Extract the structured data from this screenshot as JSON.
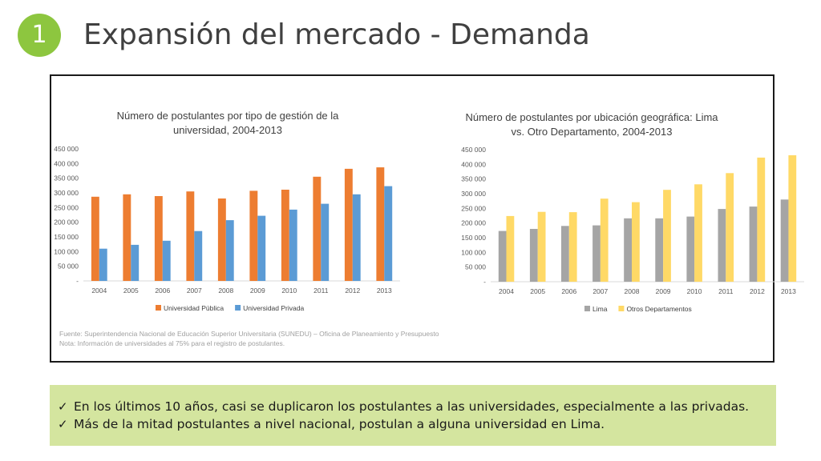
{
  "slide": {
    "number": "1",
    "title": "Expansión del mercado - Demanda"
  },
  "source_note": {
    "line1": "Fuente: Superintendencia Nacional de Educación Superior Universitaria (SUNEDU) – Oficina de Planeamiento y Presupuesto",
    "line2": "Nota: Información de universidades al 75% para el registro de postulantes."
  },
  "summary": {
    "bullets": [
      "En los últimos 10 años, casi se duplicaron los postulantes a las universidades, especialmente a las privadas.",
      "Más de la mitad postulantes a nivel nacional, postulan a alguna universidad en Lima."
    ],
    "check_icon": "checkmark-icon",
    "background": "#d4e59f"
  },
  "chart_data": [
    {
      "type": "bar",
      "title_lines": [
        "Número de postulantes por tipo de gestión de la",
        "universidad, 2004-2013"
      ],
      "categories": [
        "2004",
        "2005",
        "2006",
        "2007",
        "2008",
        "2009",
        "2010",
        "2011",
        "2012",
        "2013"
      ],
      "series": [
        {
          "name": "Universidad Pública",
          "color": "#ed7d31",
          "values": [
            287000,
            295000,
            289000,
            305000,
            281000,
            307000,
            311000,
            355000,
            382000,
            387000
          ]
        },
        {
          "name": "Universidad Privada",
          "color": "#5b9bd5",
          "values": [
            110000,
            123000,
            137000,
            170000,
            207000,
            222000,
            243000,
            263000,
            295000,
            323000
          ]
        }
      ],
      "ylim": [
        0,
        450000
      ],
      "yticks": [
        0,
        50000,
        100000,
        150000,
        200000,
        250000,
        300000,
        350000,
        400000,
        450000
      ],
      "ytick_labels": [
        "-",
        "50 000",
        "100 000",
        "150 000",
        "200 000",
        "250 000",
        "300 000",
        "350 000",
        "400 000",
        "450 000"
      ],
      "grid": false,
      "legend": "bottom"
    },
    {
      "type": "bar",
      "title_lines": [
        "Número de postulantes por ubicación geográfica: Lima",
        "vs. Otro Departamento, 2004-2013"
      ],
      "categories": [
        "2004",
        "2005",
        "2006",
        "2007",
        "2008",
        "2009",
        "2010",
        "2011",
        "2012",
        "2013"
      ],
      "series": [
        {
          "name": "Lima",
          "color": "#a5a5a5",
          "values": [
            173000,
            180000,
            190000,
            192000,
            216000,
            216000,
            222000,
            248000,
            256000,
            280000
          ]
        },
        {
          "name": "Otros Departamentos",
          "color": "#ffd966",
          "values": [
            224000,
            238000,
            237000,
            283000,
            271000,
            313000,
            332000,
            370000,
            423000,
            431000
          ]
        }
      ],
      "ylim": [
        0,
        450000
      ],
      "yticks": [
        0,
        50000,
        100000,
        150000,
        200000,
        250000,
        300000,
        350000,
        400000,
        450000
      ],
      "ytick_labels": [
        "-",
        "50 000",
        "100 000",
        "150 000",
        "200 000",
        "250 000",
        "300 000",
        "350 000",
        "400 000",
        "450 000"
      ],
      "grid": false,
      "legend": "bottom"
    }
  ]
}
